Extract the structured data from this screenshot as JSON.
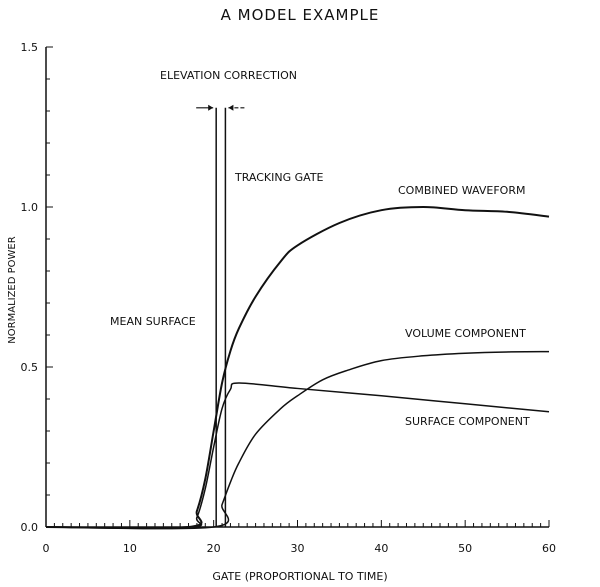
{
  "chart_data": {
    "type": "line",
    "title": "A MODEL EXAMPLE",
    "xlabel": "GATE (PROPORTIONAL TO TIME)",
    "ylabel": "NORMALIZED POWER",
    "xlim": [
      0,
      60
    ],
    "ylim": [
      0,
      1.5
    ],
    "xticks": [
      "0",
      "10",
      "20",
      "30",
      "40",
      "50",
      "60"
    ],
    "yticks": [
      "0.0",
      "0.5",
      "1.0",
      "1.5"
    ],
    "grid": false,
    "colors": {
      "line": "#111111",
      "background": "#ffffff"
    },
    "series": [
      {
        "name": "COMBINED WAVEFORM",
        "x": [
          0,
          17,
          18,
          19,
          20,
          21,
          22,
          23,
          25,
          28,
          30,
          35,
          40,
          45,
          50,
          55,
          60
        ],
        "y": [
          0,
          0,
          0.05,
          0.15,
          0.3,
          0.45,
          0.55,
          0.62,
          0.72,
          0.83,
          0.88,
          0.95,
          0.99,
          1.0,
          0.99,
          0.985,
          0.97
        ]
      },
      {
        "name": "VOLUME COMPONENT",
        "x": [
          0,
          20,
          21,
          22,
          23,
          25,
          28,
          30,
          33,
          36,
          40,
          45,
          50,
          55,
          60
        ],
        "y": [
          0,
          0,
          0.07,
          0.14,
          0.2,
          0.29,
          0.37,
          0.41,
          0.46,
          0.49,
          0.52,
          0.535,
          0.543,
          0.547,
          0.548
        ]
      },
      {
        "name": "SURFACE COMPONENT",
        "x": [
          0,
          17,
          18,
          19,
          20,
          21,
          22,
          23,
          30,
          40,
          50,
          60
        ],
        "y": [
          0,
          0,
          0.03,
          0.12,
          0.25,
          0.37,
          0.43,
          0.45,
          0.433,
          0.41,
          0.385,
          0.36
        ]
      }
    ],
    "vertical_lines": [
      {
        "name": "MEAN SURFACE",
        "x": 20.3,
        "y_top": 1.31
      },
      {
        "name": "TRACKING GATE",
        "x": 21.4,
        "y_top": 1.31
      }
    ],
    "annotations": {
      "elevation_correction": "ELEVATION CORRECTION",
      "tracking_gate": "TRACKING GATE",
      "mean_surface": "MEAN SURFACE",
      "combined": "COMBINED WAVEFORM",
      "volume": "VOLUME COMPONENT",
      "surface": "SURFACE COMPONENT"
    }
  }
}
